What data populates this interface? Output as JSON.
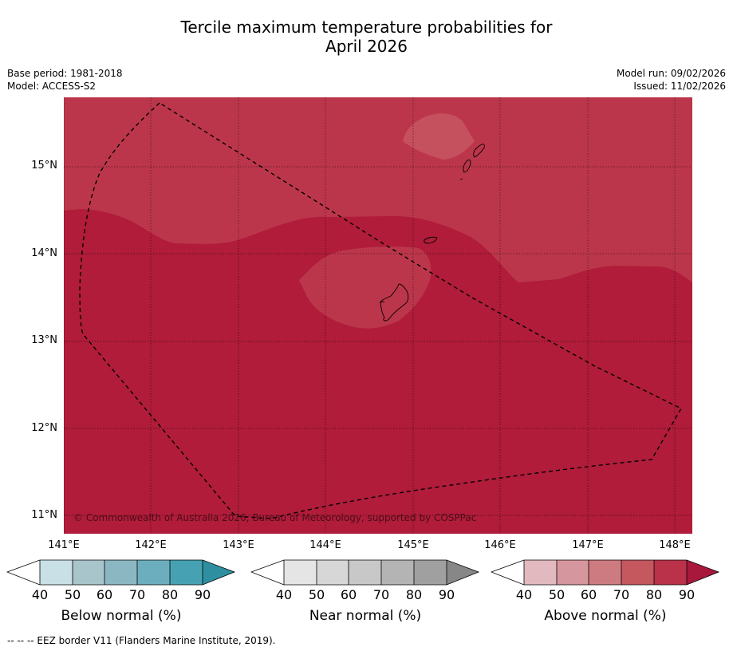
{
  "title_line1": "Tercile maximum temperature probabilities for",
  "title_line2": "April 2026",
  "base_period": "Base period: 1981-2018",
  "model": "Model: ACCESS-S2",
  "model_run": "Model run: 09/02/2026",
  "issued": "Issued: 11/02/2026",
  "copyright": "© Commonwealth of Australia 2026, Bureau of Meteorology, supported by COSPPac",
  "footnote": "--  --  -- EEZ border V11 (Flanders Marine Institute, 2019).",
  "lat_labels": [
    "15°N",
    "14°N",
    "13°N",
    "12°N",
    "11°N"
  ],
  "lon_labels": [
    "141°E",
    "142°E",
    "143°E",
    "144°E",
    "145°E",
    "146°E",
    "147°E",
    "148°E"
  ],
  "colors": {
    "map_70_80": "#c5505e",
    "map_80_90": "#bc364b",
    "map_90plus": "#b01c3a",
    "land_stroke": "#000000"
  },
  "colorbars": [
    {
      "caption": "Below normal (%)",
      "ticks": [
        "40",
        "50",
        "60",
        "70",
        "80",
        "90"
      ],
      "colors": [
        "#ffffff",
        "#c8e0e6",
        "#a8c5cb",
        "#8ab7c2",
        "#6daebe",
        "#46a2b2",
        "#2e8fa0"
      ]
    },
    {
      "caption": "Near normal (%)",
      "ticks": [
        "40",
        "50",
        "60",
        "70",
        "80",
        "90"
      ],
      "colors": [
        "#ffffff",
        "#e5e5e5",
        "#d7d7d7",
        "#c8c8c8",
        "#b4b4b4",
        "#a0a0a0",
        "#878787"
      ]
    },
    {
      "caption": "Above normal (%)",
      "ticks": [
        "40",
        "50",
        "60",
        "70",
        "80",
        "90"
      ],
      "colors": [
        "#ffffff",
        "#e2b9bf",
        "#d6969d",
        "#cd7b81",
        "#c5585f",
        "#b9324a",
        "#a8183c"
      ]
    }
  ],
  "chart_data": {
    "type": "map",
    "title": "Tercile maximum temperature probabilities for April 2026",
    "variable": "Above normal maximum temperature probability (%)",
    "lon_range": [
      140.9,
      148.2
    ],
    "lat_range": [
      10.8,
      15.8
    ],
    "regions": [
      {
        "name": "northern area",
        "category": "above normal",
        "band": "80-90"
      },
      {
        "name": "southern area",
        "category": "above normal",
        "band": "90+"
      },
      {
        "name": "around Guam",
        "category": "above normal",
        "band": "80-90"
      },
      {
        "name": "near Saipan",
        "category": "above normal",
        "band": "70-80"
      }
    ]
  }
}
